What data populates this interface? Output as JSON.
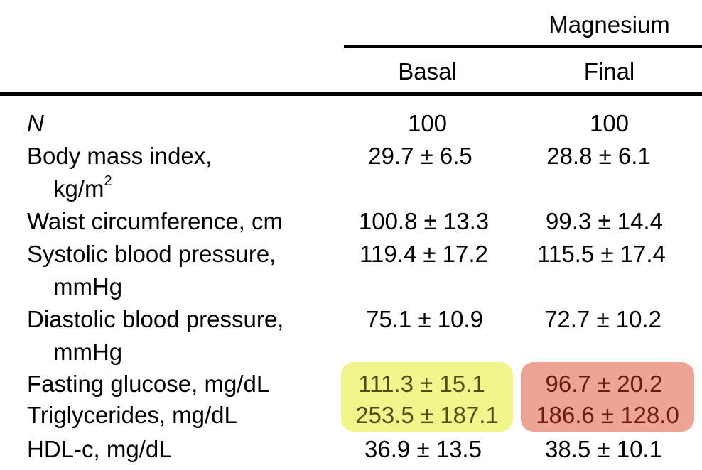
{
  "header": {
    "group_label": "Magnesium",
    "col_basal": "Basal",
    "col_final": "Final"
  },
  "rows": [
    {
      "label": "N",
      "basal": "100",
      "final": "100"
    },
    {
      "label": "Body mass index,",
      "label_cont": "kg/m",
      "label_sup": "2",
      "basal": "29.7 ± 6.5",
      "final": "28.8 ± 6.1"
    },
    {
      "label": "Waist circumference, cm",
      "basal": "100.8 ± 13.3",
      "final": "99.3 ± 14.4"
    },
    {
      "label": "Systolic blood pressure,",
      "label_cont": "mmHg",
      "basal": "119.4 ± 17.2",
      "final": "115.5 ± 17.4"
    },
    {
      "label": "Diastolic blood pressure,",
      "label_cont": "mmHg",
      "basal": "75.1 ± 10.9",
      "final": "72.7 ± 10.2"
    },
    {
      "label": "Fasting glucose, mg/dL",
      "basal": "111.3 ± 15.1",
      "final": "96.7 ± 20.2"
    },
    {
      "label": "Triglycerides, mg/dL",
      "basal": "253.5 ± 187.1",
      "final": "186.6 ± 128.0"
    },
    {
      "label": "HDL-c, mg/dL",
      "basal": "36.9 ± 13.5",
      "final": "38.5 ± 10.1"
    }
  ],
  "highlights": {
    "basal_color": "#f2f58c",
    "final_color": "#eda494"
  }
}
